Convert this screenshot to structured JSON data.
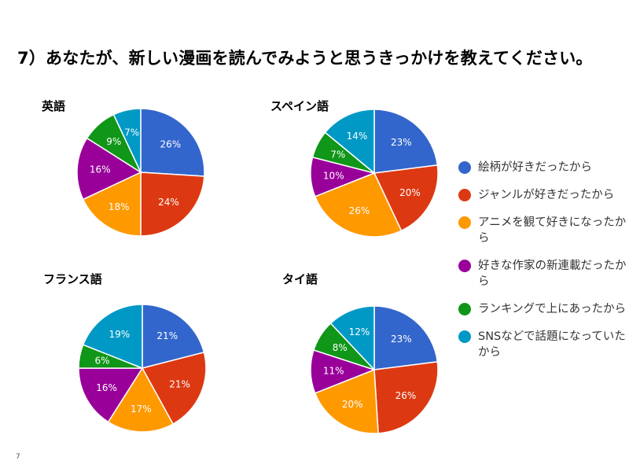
{
  "page": {
    "title": "7）あなたが、新しい漫画を読んでみようと思うきっかけを教えてください。",
    "page_number": "7"
  },
  "legend": [
    {
      "label": "絵柄が好きだったから",
      "color": "#3366cc"
    },
    {
      "label": "ジャンルが好きだったから",
      "color": "#dc3912"
    },
    {
      "label": "アニメを観て好きになったから",
      "color": "#ff9900"
    },
    {
      "label": "好きな作家の新連載だったから",
      "color": "#990099"
    },
    {
      "label": "ランキングで上にあったから",
      "color": "#109618"
    },
    {
      "label": "SNSなどで話題になっていたから",
      "color": "#0099c6"
    }
  ],
  "chart_data": [
    {
      "type": "pie",
      "title": "英語",
      "categories": [
        "絵柄が好きだったから",
        "ジャンルが好きだったから",
        "アニメを観て好きになったから",
        "好きな作家の新連載だったから",
        "ランキングで上にあったから",
        "SNSなどで話題になっていたから"
      ],
      "values": [
        26,
        24,
        18,
        16,
        9,
        7
      ],
      "labels": [
        "26%",
        "24%",
        "18%",
        "16%",
        "9%",
        "7%"
      ]
    },
    {
      "type": "pie",
      "title": "スペイン語",
      "categories": [
        "絵柄が好きだったから",
        "ジャンルが好きだったから",
        "アニメを観て好きになったから",
        "好きな作家の新連載だったから",
        "ランキングで上にあったから",
        "SNSなどで話題になっていたから"
      ],
      "values": [
        23,
        20,
        26,
        10,
        7,
        14
      ],
      "labels": [
        "23%",
        "20%",
        "26%",
        "10%",
        "7%",
        "14%"
      ]
    },
    {
      "type": "pie",
      "title": "フランス語",
      "categories": [
        "絵柄が好きだったから",
        "ジャンルが好きだったから",
        "アニメを観て好きになったから",
        "好きな作家の新連載だったから",
        "ランキングで上にあったから",
        "SNSなどで話題になっていたから"
      ],
      "values": [
        21,
        21,
        17,
        16,
        6,
        19
      ],
      "labels": [
        "21%",
        "21%",
        "17%",
        "16%",
        "6%",
        "19%"
      ]
    },
    {
      "type": "pie",
      "title": "タイ語",
      "categories": [
        "絵柄が好きだったから",
        "ジャンルが好きだったから",
        "アニメを観て好きになったから",
        "好きな作家の新連載だったから",
        "ランキングで上にあったから",
        "SNSなどで話題になっていたから"
      ],
      "values": [
        23,
        26,
        20,
        11,
        8,
        12
      ],
      "labels": [
        "23%",
        "26%",
        "20%",
        "11%",
        "8%",
        "12%"
      ]
    }
  ]
}
